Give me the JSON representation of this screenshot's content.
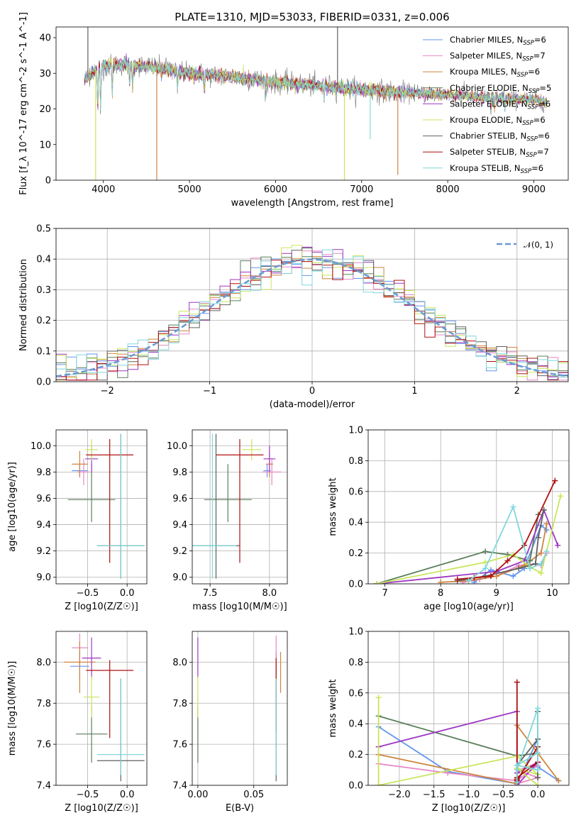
{
  "title": "PLATE=1310, MJD=53033, FIBERID=0331, z=0.006",
  "colors": {
    "ssp": [
      "#6495ed",
      "#e887c5",
      "#cd853f",
      "#5a7f5a",
      "#9d36c4",
      "#c8e65a",
      "#606060",
      "#b01010",
      "#7fd8dc"
    ],
    "gauss": "#6a9bd6",
    "grid": "#b0b0b0"
  },
  "legend_spectrum": [
    "Chabrier MILES, N_SSP=6",
    "Salpeter MILES, N_SSP=7",
    "Kroupa MILES, N_SSP=6",
    "Chabrier ELODIE, N_SSP=5",
    "Salpeter ELODIE, N_SSP=6",
    "Kroupa ELODIE, N_SSP=6",
    "Chabrier STELIB, N_SSP=6",
    "Salpeter STELIB, N_SSP=7",
    "Kroupa STELIB, N_SSP=6"
  ],
  "legend_hist": [
    "𝒩(0, 1)"
  ],
  "chart_data": [
    {
      "id": "spectrum",
      "type": "line",
      "xlabel": "wavelength [Angstrom, rest frame]",
      "ylabel": "Flux [f_λ 10^-17 erg cm^-2 s^-1 A^-1]",
      "xlim": [
        3450,
        9400
      ],
      "ylim": [
        0,
        43
      ],
      "xticks": [
        4000,
        5000,
        6000,
        7000,
        8000,
        9000
      ],
      "yticks": [
        0,
        10,
        20,
        30,
        40
      ],
      "continuum": [
        [
          3780,
          28
        ],
        [
          3900,
          31
        ],
        [
          4000,
          32
        ],
        [
          4200,
          32.5
        ],
        [
          4500,
          32
        ],
        [
          5000,
          30
        ],
        [
          5500,
          29
        ],
        [
          6000,
          27.5
        ],
        [
          6500,
          26.5
        ],
        [
          7000,
          25.5
        ],
        [
          7500,
          24.5
        ],
        [
          8000,
          24
        ],
        [
          8500,
          23.2
        ],
        [
          9000,
          22.5
        ],
        [
          9150,
          22
        ]
      ],
      "absorption_lines": [
        [
          3934,
          12
        ],
        [
          3968,
          13
        ],
        [
          4102,
          8
        ],
        [
          4305,
          6
        ],
        [
          4340,
          7
        ],
        [
          4861,
          5
        ],
        [
          5175,
          5
        ],
        [
          5890,
          4
        ],
        [
          6563,
          3
        ],
        [
          8500,
          3
        ],
        [
          8545,
          3
        ],
        [
          8665,
          3
        ]
      ],
      "spikes": [
        {
          "x": 3910,
          "y": 0,
          "series": 5
        },
        {
          "x": 4620,
          "y": 0,
          "series": 2
        },
        {
          "x": 6800,
          "y": 0,
          "series": 5
        },
        {
          "x": 7100,
          "y": 11.5,
          "series": 8
        },
        {
          "x": 7420,
          "y": 1.5,
          "series": 2
        },
        {
          "x": 6720,
          "y": 43,
          "series": 6
        },
        {
          "x": 3820,
          "y": 43,
          "series": 6
        }
      ]
    },
    {
      "id": "residual_hist",
      "type": "line",
      "xlabel": "(data-model)/error",
      "ylabel": "Normed distribution",
      "xlim": [
        -2.5,
        2.5
      ],
      "ylim": [
        0,
        0.5
      ],
      "xticks": [
        -2,
        -1,
        0,
        1,
        2
      ],
      "yticks": [
        0,
        0.1,
        0.2,
        0.3,
        0.4,
        0.5
      ],
      "bin_width": 0.1,
      "gaussian": {
        "mean": 0,
        "sigma": 1
      }
    },
    {
      "id": "age_vs_Z",
      "type": "scatter",
      "xlabel": "Z [log10(Z/Z☉)]",
      "ylabel": "age [log10(age/yr)]",
      "xlim": [
        -0.9,
        0.25
      ],
      "ylim": [
        8.95,
        10.12
      ],
      "xticks": [
        -0.5,
        0.0
      ],
      "yticks": [
        9.0,
        9.2,
        9.4,
        9.6,
        9.8,
        10.0
      ],
      "points": [
        {
          "s": 0,
          "x": -0.6,
          "y": 9.81,
          "ex": 0.1,
          "ey": [
            0.05,
            0.05
          ]
        },
        {
          "s": 1,
          "x": -0.55,
          "y": 9.8,
          "ex": 0.08,
          "ey": [
            0.1,
            0.1
          ]
        },
        {
          "s": 2,
          "x": -0.6,
          "y": 9.86,
          "ex": 0.1,
          "ey": [
            0.1,
            0.1
          ]
        },
        {
          "s": 3,
          "x": -0.45,
          "y": 9.59,
          "ex": 0.3,
          "ey": [
            0.17,
            0.27
          ]
        },
        {
          "s": 4,
          "x": -0.45,
          "y": 9.9,
          "ex": 0.08,
          "ey": [
            0.1,
            0.1
          ]
        },
        {
          "s": 5,
          "x": -0.45,
          "y": 9.97,
          "ex": 0.08,
          "ey": [
            0.08,
            0.08
          ]
        },
        {
          "s": 6,
          "x": -0.08,
          "y": 9.24,
          "ex": 0.3,
          "ey": [
            0.25,
            0.85
          ]
        },
        {
          "s": 7,
          "x": -0.22,
          "y": 9.93,
          "ex": 0.3,
          "ey": [
            0.82,
            0.12
          ]
        },
        {
          "s": 8,
          "x": -0.08,
          "y": 9.24,
          "ex": 0.3,
          "ey": [
            0.25,
            0.85
          ]
        }
      ]
    },
    {
      "id": "age_vs_mass",
      "type": "scatter",
      "xlabel": "mass [log10(M/M☉)]",
      "ylabel": "",
      "xlim": [
        7.35,
        8.15
      ],
      "ylim": [
        8.95,
        10.12
      ],
      "xticks": [
        7.5,
        8.0
      ],
      "yticks": [
        9.0,
        9.2,
        9.4,
        9.6,
        9.8,
        10.0
      ],
      "points": [
        {
          "s": 0,
          "x": 7.98,
          "y": 9.81,
          "ex": 0.03,
          "ey": [
            0.05,
            0.05
          ]
        },
        {
          "s": 1,
          "x": 8.02,
          "y": 9.8,
          "ex": 0.08,
          "ey": [
            0.1,
            0.1
          ]
        },
        {
          "s": 2,
          "x": 8.0,
          "y": 9.86,
          "ex": 0.03,
          "ey": [
            0.1,
            0.1
          ]
        },
        {
          "s": 3,
          "x": 7.65,
          "y": 9.59,
          "ex": 0.2,
          "ey": [
            0.17,
            0.27
          ]
        },
        {
          "s": 4,
          "x": 8.0,
          "y": 9.9,
          "ex": 0.05,
          "ey": [
            0.1,
            0.1
          ]
        },
        {
          "s": 5,
          "x": 7.85,
          "y": 9.97,
          "ex": 0.08,
          "ey": [
            0.08,
            0.08
          ]
        },
        {
          "s": 6,
          "x": 7.55,
          "y": 9.24,
          "ex": 0.2,
          "ey": [
            0.25,
            0.85
          ]
        },
        {
          "s": 7,
          "x": 7.75,
          "y": 9.93,
          "ex": 0.2,
          "ey": [
            0.82,
            0.12
          ]
        },
        {
          "s": 8,
          "x": 7.52,
          "y": 9.24,
          "ex": 0.2,
          "ey": [
            0.25,
            0.85
          ]
        }
      ]
    },
    {
      "id": "weight_vs_age",
      "type": "line",
      "xlabel": "age [log10(age/yr)]",
      "ylabel": "mass weight",
      "xlim": [
        6.7,
        10.3
      ],
      "ylim": [
        0,
        1
      ],
      "xticks": [
        7,
        8,
        9,
        10
      ],
      "yticks": [
        0,
        0.2,
        0.4,
        0.6,
        0.8,
        1.0
      ],
      "series": [
        {
          "s": 0,
          "x": [
            8.6,
            8.9,
            9.3,
            9.5,
            9.8,
            9.9
          ],
          "y": [
            0.01,
            0.09,
            0.05,
            0.1,
            0.38,
            0.35
          ]
        },
        {
          "s": 1,
          "x": [
            8.4,
            8.7,
            9.0,
            9.4,
            9.7,
            9.8,
            9.9
          ],
          "y": [
            0.01,
            0.03,
            0.05,
            0.12,
            0.13,
            0.12,
            0.2
          ]
        },
        {
          "s": 2,
          "x": [
            8.0,
            8.5,
            9.0,
            9.5,
            9.8,
            9.9
          ],
          "y": [
            0.01,
            0.02,
            0.05,
            0.12,
            0.2,
            0.39
          ]
        },
        {
          "s": 3,
          "x": [
            6.85,
            8.8,
            9.2,
            9.6,
            9.75
          ],
          "y": [
            0.0,
            0.21,
            0.19,
            0.15,
            0.45
          ]
        },
        {
          "s": 4,
          "x": [
            6.85,
            9.0,
            9.5,
            9.85,
            10.1
          ],
          "y": [
            0.0,
            0.08,
            0.15,
            0.48,
            0.25
          ]
        },
        {
          "s": 5,
          "x": [
            6.85,
            8.8,
            9.3,
            9.6,
            9.8,
            10.15
          ],
          "y": [
            0.0,
            0.14,
            0.19,
            0.11,
            0.07,
            0.57
          ]
        },
        {
          "s": 6,
          "x": [
            8.3,
            8.8,
            9.4,
            9.7,
            9.75,
            9.85
          ],
          "y": [
            0.02,
            0.05,
            0.1,
            0.13,
            0.3,
            0.48
          ]
        },
        {
          "s": 7,
          "x": [
            8.3,
            8.6,
            8.9,
            9.2,
            9.5,
            10.05
          ],
          "y": [
            0.03,
            0.04,
            0.05,
            0.15,
            0.25,
            0.67
          ]
        },
        {
          "s": 8,
          "x": [
            8.5,
            8.8,
            9.3,
            9.6,
            9.8,
            9.9
          ],
          "y": [
            0.02,
            0.1,
            0.5,
            0.1,
            0.13,
            0.21
          ]
        }
      ]
    },
    {
      "id": "mass_vs_Z",
      "type": "scatter",
      "xlabel": "Z [log10(Z/Z☉)]",
      "ylabel": "mass [log10(M/M☉)]",
      "xlim": [
        -0.9,
        0.25
      ],
      "ylim": [
        7.4,
        8.15
      ],
      "xticks": [
        -0.5,
        0.0
      ],
      "yticks": [
        7.4,
        7.6,
        7.8,
        8.0
      ],
      "points": [
        {
          "s": 0,
          "x": -0.6,
          "y": 7.98,
          "ex": 0.12,
          "ey": [
            0.07,
            0.07
          ]
        },
        {
          "s": 1,
          "x": -0.6,
          "y": 8.07,
          "ex": 0.1,
          "ey": [
            0.1,
            0.07
          ]
        },
        {
          "s": 2,
          "x": -0.6,
          "y": 8.0,
          "ex": 0.2,
          "ey": [
            0.15,
            0.1
          ]
        },
        {
          "s": 3,
          "x": -0.45,
          "y": 7.65,
          "ex": 0.2,
          "ey": [
            0.14,
            0.14
          ]
        },
        {
          "s": 4,
          "x": -0.45,
          "y": 8.02,
          "ex": 0.12,
          "ey": [
            0.1,
            0.1
          ]
        },
        {
          "s": 5,
          "x": -0.45,
          "y": 7.83,
          "ex": 0.1,
          "ey": [
            0.1,
            0.1
          ]
        },
        {
          "s": 6,
          "x": -0.08,
          "y": 7.52,
          "ex": 0.3,
          "ey": [
            0.1,
            0.4
          ]
        },
        {
          "s": 7,
          "x": -0.22,
          "y": 7.96,
          "ex": 0.3,
          "ey": [
            0.33,
            0.05
          ]
        },
        {
          "s": 8,
          "x": -0.08,
          "y": 7.55,
          "ex": 0.3,
          "ey": [
            0.1,
            0.37
          ]
        }
      ]
    },
    {
      "id": "mass_vs_ebv",
      "type": "scatter",
      "xlabel": "E(B-V)",
      "ylabel": "",
      "xlim": [
        -0.005,
        0.08
      ],
      "ylim": [
        7.4,
        8.15
      ],
      "xticks": [
        0.0,
        0.05
      ],
      "yticks": [
        7.4,
        7.6,
        7.8,
        8.0
      ],
      "points": [
        {
          "s": 0,
          "x": 0.07,
          "y": 7.98,
          "ex": 0,
          "ey": [
            0.07,
            0.07
          ]
        },
        {
          "s": 1,
          "x": 0.07,
          "y": 8.07,
          "ex": 0,
          "ey": [
            0.1,
            0.06
          ]
        },
        {
          "s": 2,
          "x": 0.074,
          "y": 8.0,
          "ex": 0,
          "ey": [
            0.15,
            0.05
          ]
        },
        {
          "s": 3,
          "x": 0.0,
          "y": 7.65,
          "ex": 0,
          "ey": [
            0.14,
            0.14
          ]
        },
        {
          "s": 4,
          "x": 0.0,
          "y": 8.02,
          "ex": 0,
          "ey": [
            0.1,
            0.1
          ]
        },
        {
          "s": 5,
          "x": 0.0,
          "y": 7.83,
          "ex": 0,
          "ey": [
            0.1,
            0.1
          ]
        },
        {
          "s": 6,
          "x": 0.07,
          "y": 7.52,
          "ex": 0,
          "ey": [
            0.1,
            0.4
          ]
        },
        {
          "s": 7,
          "x": 0.07,
          "y": 7.96,
          "ex": 0,
          "ey": [
            0.3,
            0.06
          ]
        },
        {
          "s": 8,
          "x": 0.07,
          "y": 7.55,
          "ex": 0,
          "ey": [
            0.1,
            0.37
          ]
        }
      ]
    },
    {
      "id": "weight_vs_Z",
      "type": "line",
      "xlabel": "Z [log10(Z/Z☉)]",
      "ylabel": "mass weight",
      "xlim": [
        -2.45,
        0.45
      ],
      "ylim": [
        0,
        1
      ],
      "xticks": [
        -2.0,
        -1.5,
        -1.0,
        -0.5,
        0.0
      ],
      "yticks": [
        0,
        0.2,
        0.4,
        0.6,
        0.8,
        1.0
      ],
      "series": [
        {
          "s": 0,
          "x": [
            -2.3,
            -1.3,
            -0.3,
            0.0,
            0.0,
            0.3
          ],
          "y": [
            0.38,
            0.09,
            0.01,
            0.3,
            0.12,
            0.03
          ]
        },
        {
          "s": 1,
          "x": [
            -2.3,
            -1.3,
            -0.3,
            0.0,
            -0.3,
            0.0,
            -0.3
          ],
          "y": [
            0.14,
            0.08,
            0.03,
            0.13,
            0.1,
            0.05,
            0.01
          ]
        },
        {
          "s": 2,
          "x": [
            -2.3,
            -0.3,
            -0.3,
            0.3
          ],
          "y": [
            0.2,
            0.01,
            0.39,
            0.03
          ]
        },
        {
          "s": 3,
          "x": [
            -2.3,
            -0.3,
            0.0,
            0.0
          ],
          "y": [
            0.45,
            0.19,
            0.21,
            0.15
          ]
        },
        {
          "s": 4,
          "x": [
            -2.3,
            -0.3,
            -0.3,
            0.0,
            -0.3
          ],
          "y": [
            0.25,
            0.48,
            0.08,
            0.15,
            0.0
          ]
        },
        {
          "s": 5,
          "x": [
            -2.3,
            -2.3,
            -0.3,
            0.0,
            -0.3,
            0.0
          ],
          "y": [
            0.57,
            0.0,
            0.19,
            0.07,
            0.11,
            0.0
          ]
        },
        {
          "s": 6,
          "x": [
            -0.3,
            -0.3,
            0.0,
            0.0,
            0.0,
            0.0
          ],
          "y": [
            0.02,
            0.13,
            0.3,
            0.1,
            0.05,
            0.48
          ]
        },
        {
          "s": 7,
          "x": [
            -0.3,
            -0.3,
            -0.3,
            -0.3,
            0.0,
            0.0,
            -0.3
          ],
          "y": [
            0.67,
            0.03,
            0.04,
            0.05,
            0.15,
            0.25,
            0.03
          ]
        },
        {
          "s": 8,
          "x": [
            -0.3,
            -0.3,
            0.0,
            0.0,
            -0.3,
            0.0
          ],
          "y": [
            0.02,
            0.1,
            0.5,
            0.1,
            0.13,
            0.21
          ]
        }
      ]
    }
  ]
}
